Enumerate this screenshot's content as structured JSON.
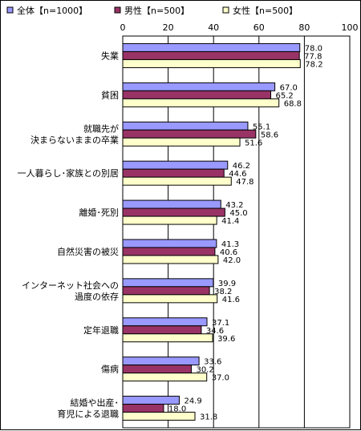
{
  "chart_data": {
    "type": "bar",
    "orientation": "horizontal",
    "xlim": [
      0,
      100
    ],
    "x_ticks": [
      "0",
      "20",
      "40",
      "60",
      "80",
      "100"
    ],
    "grid": true,
    "legend_position": "top",
    "categories": [
      [
        "失業"
      ],
      [
        "貧困"
      ],
      [
        "就職先が",
        "決まらないままの卒業"
      ],
      [
        "一人暮らし･家族との別居"
      ],
      [
        "離婚･死別"
      ],
      [
        "自然災害の被災"
      ],
      [
        "インターネット社会への",
        "過度の依存"
      ],
      [
        "定年退職"
      ],
      [
        "傷病"
      ],
      [
        "結婚や出産･",
        "育児による退職"
      ]
    ],
    "series": [
      {
        "name": "全体【n=1000】",
        "color": "#9999ff",
        "values": [
          78.0,
          67.0,
          55.1,
          46.2,
          43.2,
          41.3,
          39.9,
          37.1,
          33.6,
          24.9
        ]
      },
      {
        "name": "男性【n=500】",
        "color": "#993366",
        "values": [
          77.8,
          65.2,
          58.6,
          44.6,
          45.0,
          40.6,
          38.2,
          34.6,
          30.2,
          18.0
        ]
      },
      {
        "name": "女性【n=500】",
        "color": "#ffffcc",
        "values": [
          78.2,
          68.8,
          51.6,
          47.8,
          41.4,
          42.0,
          41.6,
          39.6,
          37.0,
          31.8
        ]
      }
    ]
  }
}
